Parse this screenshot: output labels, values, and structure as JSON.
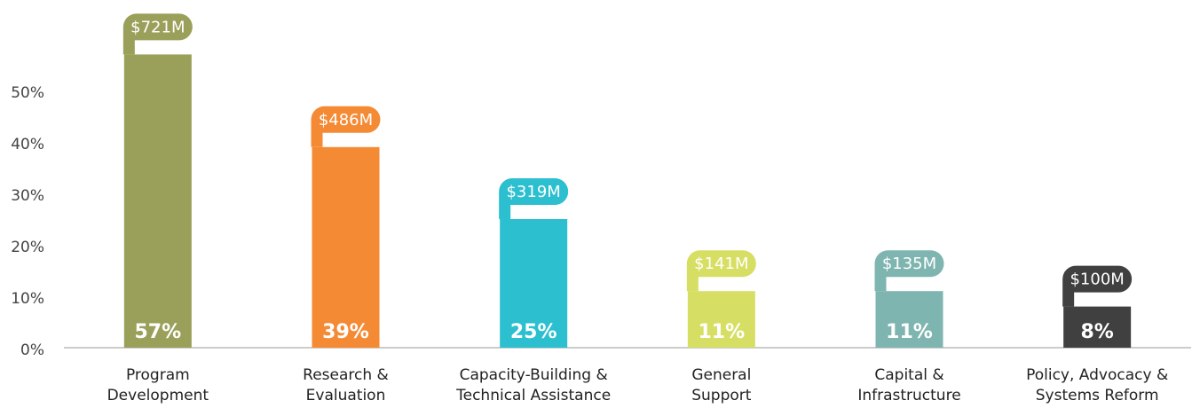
{
  "chart_data": {
    "type": "bar",
    "categories": [
      [
        "Program",
        "Development"
      ],
      [
        "Research &",
        "Evaluation"
      ],
      [
        "Capacity-Building &",
        "Technical Assistance"
      ],
      [
        "General",
        "Support"
      ],
      [
        "Capital &",
        "Infrastructure"
      ],
      [
        "Policy, Advocacy &",
        "Systems Reform"
      ]
    ],
    "values": [
      57,
      39,
      25,
      11,
      11,
      8
    ],
    "value_labels": [
      "57%",
      "39%",
      "25%",
      "11%",
      "11%",
      "8%"
    ],
    "amount_labels": [
      "$721M",
      "$486M",
      "$319M",
      "$141M",
      "$135M",
      "$100M"
    ],
    "colors": [
      "#9aa05a",
      "#f58a35",
      "#2bbfcf",
      "#d6df63",
      "#7fb5b0",
      "#404040"
    ],
    "ylim": [
      0,
      60
    ],
    "yticks": [
      {
        "value": 0,
        "label": "0%"
      },
      {
        "value": 10,
        "label": "10%"
      },
      {
        "value": 20,
        "label": "20%"
      },
      {
        "value": 30,
        "label": "30%"
      },
      {
        "value": 40,
        "label": "40%"
      },
      {
        "value": 50,
        "label": "50%"
      }
    ],
    "grid": false
  }
}
